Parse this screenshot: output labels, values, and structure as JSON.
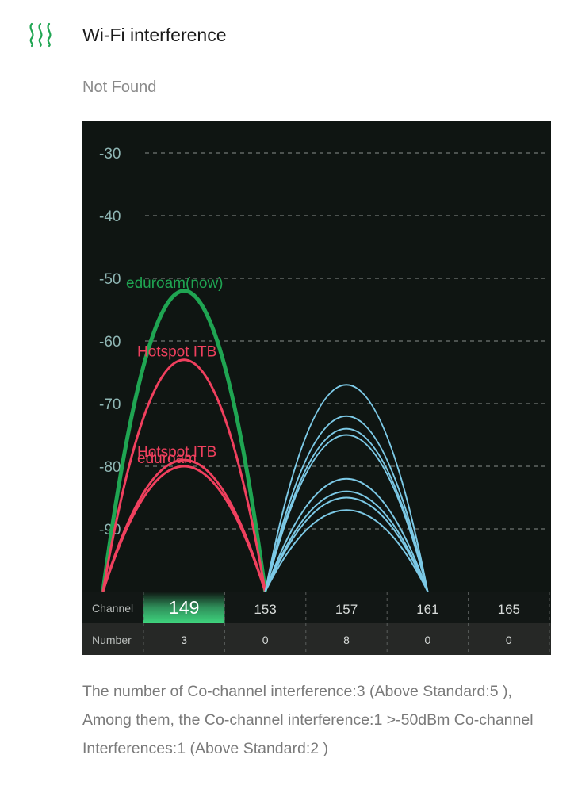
{
  "header": {
    "title": "Wi-Fi interference",
    "status": "Not Found",
    "icon": "wifi-interference-icon"
  },
  "colors": {
    "current": "#1fa552",
    "named": "#f0405e",
    "other": "#7cc9e6",
    "background": "#0f1512",
    "highlight": "#3fd57e"
  },
  "chart_data": {
    "type": "line",
    "title": "",
    "ylabel": "",
    "ylim": [
      -100,
      -25
    ],
    "y_ticks": [
      -30,
      -40,
      -50,
      -60,
      -70,
      -80,
      -90
    ],
    "grid": true,
    "x_label": "Channel",
    "number_label": "Number",
    "channels": [
      "149",
      "153",
      "157",
      "161",
      "165"
    ],
    "numbers": [
      "3",
      "0",
      "8",
      "0",
      "0"
    ],
    "selected_channel": "149",
    "series": [
      {
        "name": "eduroam(now)",
        "channel": 149,
        "rssi": -52,
        "kind": "current"
      },
      {
        "name": "Hotspot ITB",
        "channel": 149,
        "rssi": -63,
        "kind": "named"
      },
      {
        "name": "Hotspot ITB",
        "channel": 149,
        "rssi": -79,
        "kind": "named"
      },
      {
        "name": "eduroam",
        "channel": 149,
        "rssi": -80,
        "kind": "named"
      },
      {
        "name": "",
        "channel": 157,
        "rssi": -67,
        "kind": "other"
      },
      {
        "name": "",
        "channel": 157,
        "rssi": -72,
        "kind": "other"
      },
      {
        "name": "",
        "channel": 157,
        "rssi": -74,
        "kind": "other"
      },
      {
        "name": "",
        "channel": 157,
        "rssi": -75,
        "kind": "other"
      },
      {
        "name": "",
        "channel": 157,
        "rssi": -82,
        "kind": "other"
      },
      {
        "name": "",
        "channel": 157,
        "rssi": -84,
        "kind": "other"
      },
      {
        "name": "",
        "channel": 157,
        "rssi": -85,
        "kind": "other"
      },
      {
        "name": "",
        "channel": 157,
        "rssi": -87,
        "kind": "other"
      }
    ]
  },
  "summary": {
    "text": "The number of Co-channel interference:3 (Above Standard:5 ), Among them, the Co-channel interference:1 >-50dBm Co-channel Interferences:1 (Above Standard:2 )"
  }
}
